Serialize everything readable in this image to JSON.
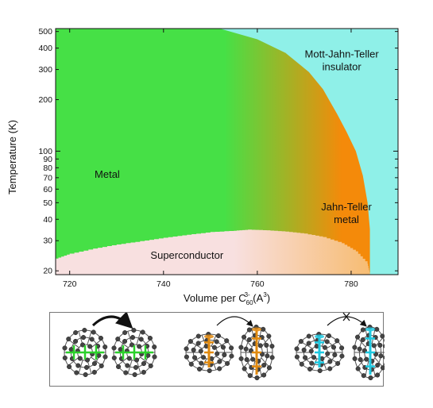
{
  "chart_data": {
    "type": "heatmap",
    "title": "",
    "xlabel": "Volume per C",
    "xlabel_sub": "60",
    "xlabel_sup": "3-",
    "xlabel_unit_open": " (A",
    "xlabel_unit_sup": "3",
    "xlabel_unit_close": ")",
    "ylabel": "Temperature (K)",
    "xlim": [
      717,
      790
    ],
    "ylim": [
      19,
      520
    ],
    "yscale": "log",
    "x_ticks": [
      720,
      740,
      760,
      780
    ],
    "y_ticks": [
      20,
      30,
      40,
      50,
      60,
      70,
      80,
      90,
      100,
      200,
      300,
      400,
      500
    ],
    "grid": false,
    "regions": [
      {
        "label": "Metal",
        "color": "#46e046",
        "label_pos": [
          728,
          73
        ]
      },
      {
        "label": "Superconductor",
        "color": "#f8e0e0",
        "label_pos": [
          745,
          24.5
        ]
      },
      {
        "label": "Jahn-Teller",
        "label2": "metal",
        "color": "#f48a0a",
        "label_pos": [
          779,
          45
        ]
      },
      {
        "label": "Mott-Jahn-Teller",
        "label2": "insulator",
        "color": "#8ff0e8",
        "label_pos": [
          778,
          330
        ]
      }
    ],
    "superconducting_dome": [
      [
        717,
        23.6
      ],
      [
        720,
        25.2
      ],
      [
        725,
        27.0
      ],
      [
        730,
        28.5
      ],
      [
        735,
        29.8
      ],
      [
        740,
        31.2
      ],
      [
        745,
        32.5
      ],
      [
        750,
        33.7
      ],
      [
        755,
        34.3
      ],
      [
        758,
        34.8
      ],
      [
        762,
        34.5
      ],
      [
        766,
        33.9
      ],
      [
        770,
        33.0
      ],
      [
        774,
        31.5
      ],
      [
        778,
        29.0
      ],
      [
        781,
        26.0
      ],
      [
        783.5,
        22.0
      ],
      [
        784,
        19
      ]
    ],
    "mott_boundary": [
      [
        752,
        520
      ],
      [
        760,
        450
      ],
      [
        766,
        375
      ],
      [
        771,
        290
      ],
      [
        774,
        230
      ],
      [
        777,
        165
      ],
      [
        779,
        130
      ],
      [
        781,
        100
      ],
      [
        782.5,
        72
      ],
      [
        783.5,
        50
      ],
      [
        784,
        35
      ],
      [
        784,
        19
      ]
    ]
  },
  "panel": {
    "molecules": [
      {
        "orbital_color": "#2bd02b",
        "shape": "round"
      },
      {
        "orbital_color": "#2bd02b",
        "shape": "round"
      },
      {
        "orbital_color": "#e08a10",
        "shape": "squashed"
      },
      {
        "orbital_color": "#e08a10",
        "shape": "tall"
      },
      {
        "orbital_color": "#1ec8e0",
        "shape": "squashed"
      },
      {
        "orbital_color": "#1ec8e0",
        "shape": "tall"
      }
    ],
    "arrows": [
      {
        "from": 0,
        "to": 1,
        "weight": "thick",
        "blocked": false
      },
      {
        "from": 2,
        "to": 3,
        "weight": "thin",
        "blocked": false
      },
      {
        "from": 4,
        "to": 5,
        "weight": "thin",
        "blocked": true
      }
    ]
  }
}
